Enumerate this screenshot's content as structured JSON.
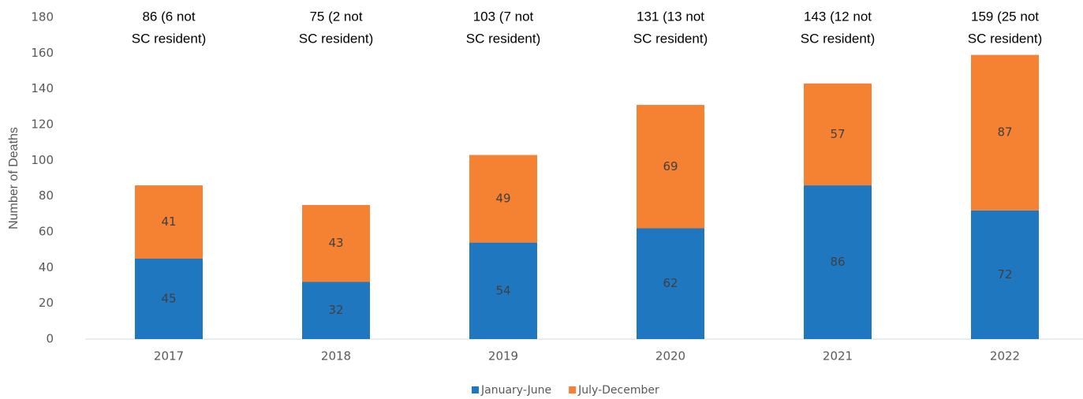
{
  "chart_data": {
    "type": "stacked_bar",
    "y_label": "Number of Deaths",
    "categories": [
      "2017",
      "2018",
      "2019",
      "2020",
      "2021",
      "2022"
    ],
    "series": [
      {
        "name": "January-June",
        "color": "#1f77c0",
        "values": [
          45,
          32,
          54,
          62,
          86,
          72
        ]
      },
      {
        "name": "July-December",
        "color": "#f58233",
        "values": [
          41,
          43,
          49,
          69,
          57,
          87
        ]
      }
    ],
    "annotations": [
      [
        "86 (6 not",
        "SC resident)"
      ],
      [
        "75 (2 not",
        "SC resident)"
      ],
      [
        "103 (7 not",
        "SC resident)"
      ],
      [
        "131 (13 not",
        "SC resident)"
      ],
      [
        "143 (12 not",
        "SC resident)"
      ],
      [
        "159 (25 not",
        "SC resident)"
      ]
    ],
    "ylim": [
      0,
      180
    ],
    "yticks": [
      0,
      20,
      40,
      60,
      80,
      100,
      120,
      140,
      160,
      180
    ],
    "legend": "bottom"
  }
}
